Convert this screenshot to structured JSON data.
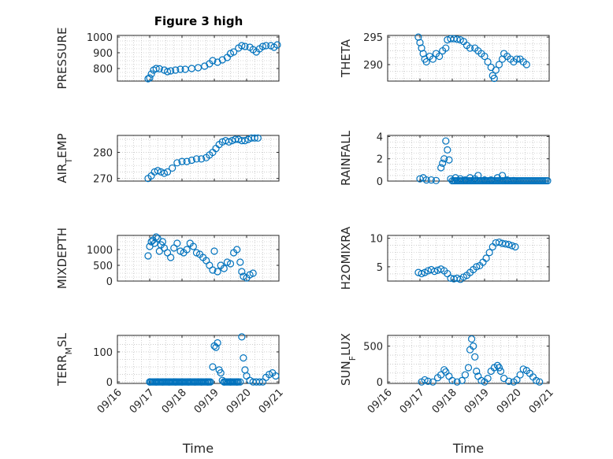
{
  "figure": {
    "title": "Figure 3 high",
    "marker_color": "#0072bd"
  },
  "chart_data": [
    {
      "type": "scatter",
      "ylabel": "PRESSURE",
      "yticks": [
        800,
        900,
        1000
      ],
      "ytick_labels": [
        "800",
        "900",
        "1000"
      ],
      "ylim": [
        720,
        1010
      ],
      "xlim": [
        0,
        5
      ],
      "xticks": [
        0,
        1,
        2,
        3,
        4,
        5
      ],
      "xtick_labels": [],
      "xlabel": "",
      "points": [
        [
          0.95,
          735
        ],
        [
          1.0,
          740
        ],
        [
          1.05,
          765
        ],
        [
          1.12,
          790
        ],
        [
          1.2,
          800
        ],
        [
          1.3,
          798
        ],
        [
          1.45,
          790
        ],
        [
          1.55,
          780
        ],
        [
          1.65,
          785
        ],
        [
          1.8,
          790
        ],
        [
          1.95,
          795
        ],
        [
          2.1,
          795
        ],
        [
          2.3,
          800
        ],
        [
          2.5,
          805
        ],
        [
          2.7,
          815
        ],
        [
          2.85,
          830
        ],
        [
          2.95,
          850
        ],
        [
          3.1,
          840
        ],
        [
          3.25,
          855
        ],
        [
          3.4,
          870
        ],
        [
          3.5,
          895
        ],
        [
          3.6,
          905
        ],
        [
          3.75,
          930
        ],
        [
          3.85,
          945
        ],
        [
          3.95,
          940
        ],
        [
          4.1,
          935
        ],
        [
          4.2,
          920
        ],
        [
          4.3,
          905
        ],
        [
          4.4,
          925
        ],
        [
          4.5,
          940
        ],
        [
          4.6,
          945
        ],
        [
          4.75,
          945
        ],
        [
          4.85,
          935
        ],
        [
          4.95,
          950
        ]
      ]
    },
    {
      "type": "scatter",
      "ylabel": "THETA",
      "yticks": [
        290,
        295
      ],
      "ytick_labels": [
        "290",
        "295"
      ],
      "ylim": [
        287,
        295.3
      ],
      "xlim": [
        0,
        5
      ],
      "xticks": [
        0,
        1,
        2,
        3,
        4,
        5
      ],
      "xtick_labels": [],
      "xlabel": "",
      "points": [
        [
          0.95,
          295
        ],
        [
          1.0,
          294
        ],
        [
          1.05,
          293
        ],
        [
          1.1,
          292
        ],
        [
          1.15,
          291
        ],
        [
          1.2,
          290.5
        ],
        [
          1.3,
          291.5
        ],
        [
          1.4,
          291
        ],
        [
          1.5,
          292
        ],
        [
          1.6,
          291.5
        ],
        [
          1.7,
          292.5
        ],
        [
          1.8,
          293
        ],
        [
          1.85,
          294.5
        ],
        [
          1.95,
          294.7
        ],
        [
          2.05,
          294.7
        ],
        [
          2.15,
          294.6
        ],
        [
          2.25,
          294.5
        ],
        [
          2.35,
          294.2
        ],
        [
          2.45,
          293.5
        ],
        [
          2.55,
          293
        ],
        [
          2.7,
          293
        ],
        [
          2.8,
          292.5
        ],
        [
          2.9,
          292
        ],
        [
          3.0,
          291.5
        ],
        [
          3.1,
          290.5
        ],
        [
          3.2,
          289.5
        ],
        [
          3.25,
          288
        ],
        [
          3.3,
          287.5
        ],
        [
          3.35,
          289
        ],
        [
          3.45,
          290
        ],
        [
          3.55,
          291
        ],
        [
          3.6,
          292
        ],
        [
          3.7,
          291.5
        ],
        [
          3.8,
          291
        ],
        [
          3.9,
          290.5
        ],
        [
          4.0,
          291
        ],
        [
          4.1,
          291
        ],
        [
          4.2,
          290.5
        ],
        [
          4.3,
          290
        ]
      ]
    },
    {
      "type": "scatter",
      "ylabel": "AIR_TEMP",
      "ylabel_parts": {
        "main": "AIR",
        "sub": "T",
        "rest": "EMP"
      },
      "yticks": [
        270,
        280
      ],
      "ytick_labels": [
        "270",
        "280"
      ],
      "ylim": [
        269,
        286.5
      ],
      "xlim": [
        0,
        5
      ],
      "xticks": [
        0,
        1,
        2,
        3,
        4,
        5
      ],
      "xtick_labels": [],
      "xlabel": "",
      "points": [
        [
          0.95,
          270
        ],
        [
          1.05,
          271
        ],
        [
          1.15,
          272.5
        ],
        [
          1.25,
          273
        ],
        [
          1.35,
          272.5
        ],
        [
          1.45,
          272
        ],
        [
          1.55,
          272.5
        ],
        [
          1.7,
          274
        ],
        [
          1.85,
          276
        ],
        [
          2.0,
          276.5
        ],
        [
          2.15,
          276.5
        ],
        [
          2.3,
          277
        ],
        [
          2.45,
          277.5
        ],
        [
          2.6,
          277.5
        ],
        [
          2.75,
          278
        ],
        [
          2.85,
          279
        ],
        [
          2.95,
          280
        ],
        [
          3.05,
          281.5
        ],
        [
          3.15,
          283
        ],
        [
          3.25,
          284
        ],
        [
          3.35,
          284.5
        ],
        [
          3.45,
          284
        ],
        [
          3.55,
          284.5
        ],
        [
          3.65,
          285
        ],
        [
          3.75,
          285
        ],
        [
          3.85,
          284.5
        ],
        [
          3.95,
          284.5
        ],
        [
          4.05,
          285
        ],
        [
          4.15,
          285.5
        ],
        [
          4.25,
          285.5
        ],
        [
          4.35,
          285.5
        ]
      ]
    },
    {
      "type": "scatter",
      "ylabel": "RAINFALL",
      "yticks": [
        0,
        2,
        4
      ],
      "ytick_labels": [
        "0",
        "2",
        "4"
      ],
      "ylim": [
        0,
        4.1
      ],
      "xlim": [
        0,
        5
      ],
      "xticks": [
        0,
        1,
        2,
        3,
        4,
        5
      ],
      "xtick_labels": [],
      "xlabel": "",
      "points": [
        [
          1.0,
          0.2
        ],
        [
          1.1,
          0.3
        ],
        [
          1.2,
          0.1
        ],
        [
          1.35,
          0.1
        ],
        [
          1.5,
          0.05
        ],
        [
          1.65,
          1.2
        ],
        [
          1.7,
          1.6
        ],
        [
          1.75,
          2.0
        ],
        [
          1.8,
          3.6
        ],
        [
          1.85,
          2.8
        ],
        [
          1.9,
          1.9
        ],
        [
          1.95,
          0.2
        ],
        [
          2.1,
          0.3
        ],
        [
          2.25,
          0.2
        ],
        [
          2.4,
          0.1
        ],
        [
          2.55,
          0.3
        ],
        [
          2.7,
          0.2
        ],
        [
          2.8,
          0.5
        ],
        [
          3.0,
          0.1
        ],
        [
          3.2,
          0.1
        ],
        [
          3.4,
          0.3
        ],
        [
          3.55,
          0.5
        ],
        [
          3.7,
          0.1
        ],
        [
          3.9,
          0.05
        ]
      ]
    },
    {
      "type": "scatter",
      "ylabel": "MIXDEPTH",
      "yticks": [
        0,
        500,
        1000
      ],
      "ytick_labels": [
        "0",
        "500",
        "1000"
      ],
      "ylim": [
        0,
        1450
      ],
      "xlim": [
        0,
        5
      ],
      "xticks": [
        0,
        1,
        2,
        3,
        4,
        5
      ],
      "xtick_labels": [],
      "xlabel": "",
      "points": [
        [
          0.95,
          800
        ],
        [
          1.0,
          1100
        ],
        [
          1.05,
          1250
        ],
        [
          1.1,
          1300
        ],
        [
          1.15,
          1200
        ],
        [
          1.2,
          1400
        ],
        [
          1.25,
          1350
        ],
        [
          1.3,
          950
        ],
        [
          1.35,
          1150
        ],
        [
          1.4,
          1250
        ],
        [
          1.45,
          1050
        ],
        [
          1.55,
          900
        ],
        [
          1.65,
          750
        ],
        [
          1.75,
          1050
        ],
        [
          1.85,
          1200
        ],
        [
          1.95,
          950
        ],
        [
          2.05,
          900
        ],
        [
          2.15,
          1000
        ],
        [
          2.25,
          1200
        ],
        [
          2.35,
          1100
        ],
        [
          2.45,
          900
        ],
        [
          2.55,
          850
        ],
        [
          2.65,
          750
        ],
        [
          2.75,
          650
        ],
        [
          2.85,
          500
        ],
        [
          2.95,
          350
        ],
        [
          3.0,
          950
        ],
        [
          3.1,
          300
        ],
        [
          3.2,
          500
        ],
        [
          3.3,
          400
        ],
        [
          3.4,
          600
        ],
        [
          3.5,
          550
        ],
        [
          3.6,
          900
        ],
        [
          3.7,
          1000
        ],
        [
          3.8,
          600
        ],
        [
          3.85,
          300
        ],
        [
          3.9,
          150
        ],
        [
          4.0,
          100
        ],
        [
          4.1,
          200
        ],
        [
          4.2,
          250
        ]
      ]
    },
    {
      "type": "scatter",
      "ylabel": "H2OMIXRA",
      "yticks": [
        5,
        10
      ],
      "ytick_labels": [
        "5",
        "10"
      ],
      "ylim": [
        2.5,
        10.5
      ],
      "xlim": [
        0,
        5
      ],
      "xticks": [
        0,
        1,
        2,
        3,
        4,
        5
      ],
      "xtick_labels": [],
      "xlabel": "",
      "points": [
        [
          0.95,
          4
        ],
        [
          1.05,
          3.8
        ],
        [
          1.15,
          4
        ],
        [
          1.25,
          4.3
        ],
        [
          1.35,
          4.5
        ],
        [
          1.45,
          4.2
        ],
        [
          1.55,
          4.4
        ],
        [
          1.65,
          4.6
        ],
        [
          1.75,
          4.3
        ],
        [
          1.85,
          3.8
        ],
        [
          1.95,
          3
        ],
        [
          2.05,
          2.9
        ],
        [
          2.15,
          3
        ],
        [
          2.25,
          2.8
        ],
        [
          2.35,
          3.2
        ],
        [
          2.45,
          3.5
        ],
        [
          2.55,
          4
        ],
        [
          2.65,
          4.5
        ],
        [
          2.75,
          5
        ],
        [
          2.85,
          5.2
        ],
        [
          2.95,
          5.8
        ],
        [
          3.05,
          6.5
        ],
        [
          3.15,
          7.5
        ],
        [
          3.25,
          8.5
        ],
        [
          3.35,
          9.2
        ],
        [
          3.45,
          9.3
        ],
        [
          3.55,
          9.1
        ],
        [
          3.65,
          9
        ],
        [
          3.75,
          8.9
        ],
        [
          3.85,
          8.7
        ],
        [
          3.95,
          8.5
        ]
      ]
    },
    {
      "type": "scatter",
      "ylabel": "TERR_MSL",
      "ylabel_parts": {
        "main": "TERR",
        "sub": "M",
        "rest": "SL"
      },
      "yticks": [
        0,
        100
      ],
      "ytick_labels": [
        "0",
        "100"
      ],
      "ylim": [
        -5,
        155
      ],
      "xlim": [
        0,
        5
      ],
      "xticks": [
        0,
        1,
        2,
        3,
        4,
        5
      ],
      "xtick_labels": [
        "09/16",
        "09/17",
        "09/18",
        "09/19",
        "09/20",
        "09/21"
      ],
      "xlabel": "Time",
      "points": [
        [
          1.0,
          0
        ],
        [
          1.2,
          0
        ],
        [
          1.4,
          0
        ],
        [
          1.6,
          0
        ],
        [
          1.8,
          0
        ],
        [
          2.0,
          0
        ],
        [
          2.2,
          0
        ],
        [
          2.4,
          0
        ],
        [
          2.6,
          0
        ],
        [
          2.8,
          0
        ],
        [
          2.95,
          50
        ],
        [
          3.0,
          120
        ],
        [
          3.05,
          115
        ],
        [
          3.1,
          130
        ],
        [
          3.15,
          40
        ],
        [
          3.2,
          30
        ],
        [
          3.25,
          5
        ],
        [
          3.3,
          0
        ],
        [
          3.5,
          0
        ],
        [
          3.7,
          0
        ],
        [
          3.8,
          0
        ],
        [
          3.85,
          150
        ],
        [
          3.9,
          80
        ],
        [
          3.95,
          40
        ],
        [
          4.0,
          20
        ],
        [
          4.1,
          5
        ],
        [
          4.2,
          0
        ],
        [
          4.3,
          0
        ],
        [
          4.4,
          0
        ],
        [
          4.5,
          0
        ],
        [
          4.6,
          15
        ],
        [
          4.7,
          25
        ],
        [
          4.8,
          30
        ],
        [
          4.9,
          20
        ]
      ]
    },
    {
      "type": "scatter",
      "ylabel": "SUN_FLUX",
      "ylabel_parts": {
        "main": "SUN",
        "sub": "F",
        "rest": "LUX"
      },
      "yticks": [
        0,
        500
      ],
      "ytick_labels": [
        "0",
        "500"
      ],
      "ylim": [
        -20,
        650
      ],
      "xlim": [
        0,
        5
      ],
      "xticks": [
        0,
        1,
        2,
        3,
        4,
        5
      ],
      "xtick_labels": [
        "09/16",
        "09/17",
        "09/18",
        "09/19",
        "09/20",
        "09/21"
      ],
      "xlabel": "Time",
      "points": [
        [
          1.05,
          0
        ],
        [
          1.15,
          30
        ],
        [
          1.25,
          10
        ],
        [
          1.4,
          0
        ],
        [
          1.55,
          60
        ],
        [
          1.65,
          100
        ],
        [
          1.75,
          170
        ],
        [
          1.8,
          140
        ],
        [
          1.9,
          80
        ],
        [
          2.0,
          20
        ],
        [
          2.15,
          0
        ],
        [
          2.3,
          20
        ],
        [
          2.4,
          100
        ],
        [
          2.5,
          200
        ],
        [
          2.55,
          450
        ],
        [
          2.6,
          600
        ],
        [
          2.65,
          500
        ],
        [
          2.7,
          350
        ],
        [
          2.75,
          150
        ],
        [
          2.8,
          80
        ],
        [
          2.9,
          20
        ],
        [
          3.0,
          0
        ],
        [
          3.1,
          50
        ],
        [
          3.2,
          150
        ],
        [
          3.3,
          200
        ],
        [
          3.4,
          230
        ],
        [
          3.45,
          200
        ],
        [
          3.5,
          150
        ],
        [
          3.6,
          50
        ],
        [
          3.75,
          10
        ],
        [
          3.9,
          0
        ],
        [
          4.0,
          30
        ],
        [
          4.1,
          100
        ],
        [
          4.2,
          180
        ],
        [
          4.3,
          160
        ],
        [
          4.4,
          120
        ],
        [
          4.5,
          70
        ],
        [
          4.6,
          20
        ],
        [
          4.7,
          0
        ]
      ]
    }
  ]
}
